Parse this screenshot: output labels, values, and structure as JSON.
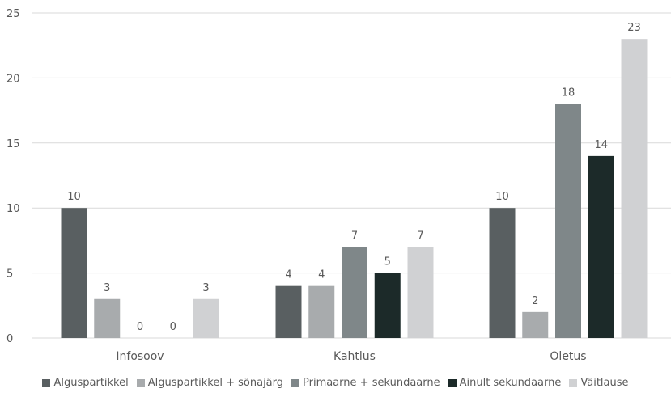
{
  "chart_data": {
    "type": "bar",
    "title": "",
    "xlabel": "",
    "ylabel": "",
    "ylim": [
      0,
      25
    ],
    "yticks": [
      0,
      5,
      10,
      15,
      20,
      25
    ],
    "grid": true,
    "legend_position": "bottom",
    "categories": [
      "Infosoov",
      "Kahtlus",
      "Oletus"
    ],
    "series": [
      {
        "name": "Alguspartikkel",
        "color": "#595f61",
        "values": [
          10,
          4,
          10
        ]
      },
      {
        "name": "Alguspartikkel + sõnajärg",
        "color": "#a8abad",
        "values": [
          3,
          4,
          2
        ]
      },
      {
        "name": "Primaarne + sekundaarne",
        "color": "#7f8789",
        "values": [
          0,
          7,
          18
        ]
      },
      {
        "name": "Ainult sekundaarne",
        "color": "#1c2a29",
        "values": [
          0,
          5,
          14
        ]
      },
      {
        "name": "Väitlause",
        "color": "#d0d1d3",
        "values": [
          3,
          7,
          23
        ]
      }
    ]
  }
}
